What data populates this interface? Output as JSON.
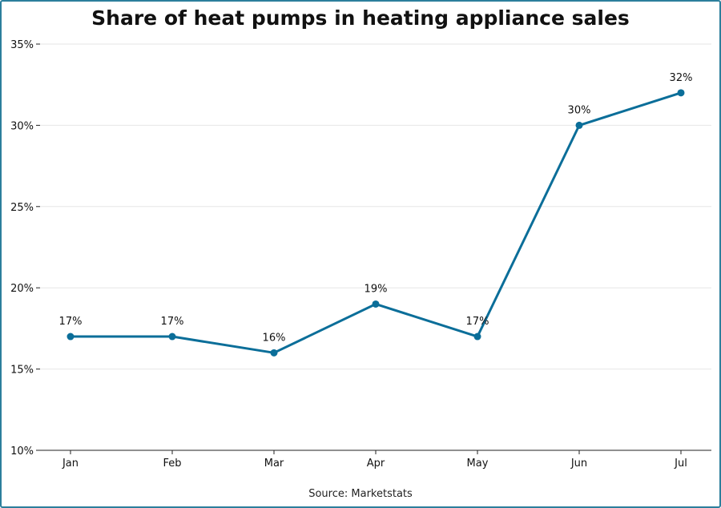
{
  "chart_data": {
    "type": "line",
    "title": "Share of heat pumps in heating appliance sales",
    "xlabel": "",
    "ylabel": "",
    "categories": [
      "Jan",
      "Feb",
      "Mar",
      "Apr",
      "May",
      "Jun",
      "Jul"
    ],
    "series": [
      {
        "values": [
          17,
          17,
          16,
          19,
          17,
          30,
          32
        ]
      }
    ],
    "data_labels": [
      "17%",
      "17%",
      "16%",
      "19%",
      "17%",
      "30%",
      "32%"
    ],
    "ylim": [
      10,
      35
    ],
    "yticks": [
      10,
      15,
      20,
      25,
      30,
      35
    ],
    "ytick_labels": [
      "10%",
      "15%",
      "20%",
      "25%",
      "30%",
      "35%"
    ],
    "grid": "horizontal",
    "legend": "none",
    "color": "#0b6e99"
  },
  "source": "Source: Marketstats"
}
